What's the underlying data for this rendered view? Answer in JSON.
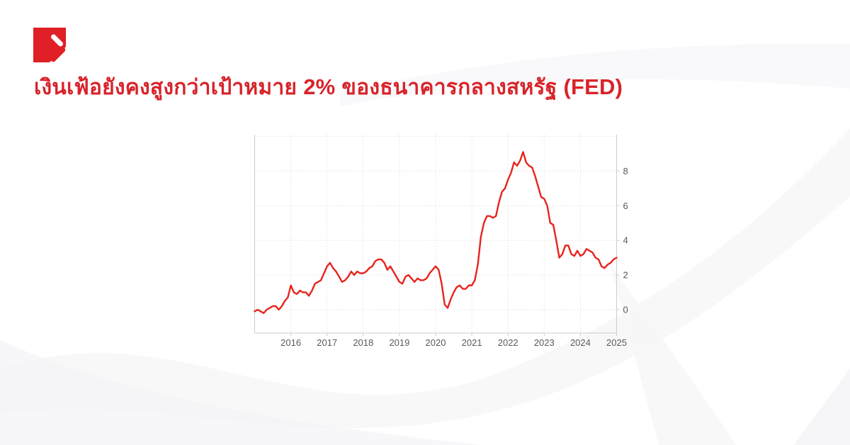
{
  "colors": {
    "brand_red": "#e01f26",
    "headline_red": "#d8232a",
    "swoosh_light": "#f5f5f7",
    "swoosh_lighter": "#f8f8fa"
  },
  "headline": {
    "part1": "เงินเฟ้อยังคงสูงกว่าเป้าหมาย",
    "highlight1": "2%",
    "part2": "ของธนาคารกลางสหรัฐ",
    "highlight2": "(FED)"
  },
  "chart_data": {
    "type": "line",
    "title": "",
    "xlabel": "",
    "ylabel": "",
    "frequency": "monthly",
    "x_start_year": 2015,
    "x_start_month": 1,
    "xlim": [
      2015.0,
      2025.0
    ],
    "ylim": [
      -1.35,
      10.1
    ],
    "grid": "dotted",
    "legend": "none",
    "x_ticks": [
      {
        "value": 2016,
        "label": "2016"
      },
      {
        "value": 2017,
        "label": "2017"
      },
      {
        "value": 2018,
        "label": "2018"
      },
      {
        "value": 2019,
        "label": "2019"
      },
      {
        "value": 2020,
        "label": "2020"
      },
      {
        "value": 2021,
        "label": "2021"
      },
      {
        "value": 2022,
        "label": "2022"
      },
      {
        "value": 2023,
        "label": "2023"
      },
      {
        "value": 2024,
        "label": "2024"
      },
      {
        "value": 2025,
        "label": "2025"
      }
    ],
    "y_ticks": [
      {
        "value": 0,
        "label": "0"
      },
      {
        "value": 2,
        "label": "2"
      },
      {
        "value": 4,
        "label": "4"
      },
      {
        "value": 6,
        "label": "6"
      },
      {
        "value": 8,
        "label": "8"
      }
    ],
    "y_grid_values": [
      0,
      2,
      4,
      6,
      8,
      10
    ],
    "line_color": "#e8231d",
    "grid_color": "#e2e2e2",
    "axis_color": "#cccccc",
    "tick_text_color": "#595959",
    "values": [
      -0.1,
      0.0,
      -0.1,
      -0.2,
      0.0,
      0.1,
      0.2,
      0.2,
      0.0,
      0.2,
      0.5,
      0.7,
      1.4,
      1.0,
      0.9,
      1.1,
      1.0,
      1.0,
      0.8,
      1.1,
      1.5,
      1.6,
      1.7,
      2.1,
      2.5,
      2.7,
      2.4,
      2.2,
      1.9,
      1.6,
      1.7,
      1.9,
      2.2,
      2.0,
      2.2,
      2.1,
      2.1,
      2.2,
      2.4,
      2.5,
      2.8,
      2.9,
      2.9,
      2.7,
      2.3,
      2.5,
      2.2,
      1.9,
      1.6,
      1.5,
      1.9,
      2.0,
      1.8,
      1.6,
      1.8,
      1.7,
      1.7,
      1.8,
      2.1,
      2.3,
      2.5,
      2.3,
      1.5,
      0.3,
      0.1,
      0.6,
      1.0,
      1.3,
      1.4,
      1.2,
      1.2,
      1.4,
      1.4,
      1.7,
      2.6,
      4.2,
      5.0,
      5.4,
      5.4,
      5.3,
      5.4,
      6.2,
      6.8,
      7.0,
      7.5,
      7.9,
      8.5,
      8.3,
      8.6,
      9.1,
      8.5,
      8.3,
      8.2,
      7.7,
      7.1,
      6.5,
      6.4,
      6.0,
      5.0,
      4.9,
      4.0,
      3.0,
      3.2,
      3.7,
      3.7,
      3.2,
      3.1,
      3.4,
      3.1,
      3.2,
      3.5,
      3.4,
      3.3,
      3.0,
      2.9,
      2.5,
      2.4,
      2.6,
      2.7,
      2.9,
      3.0
    ]
  }
}
